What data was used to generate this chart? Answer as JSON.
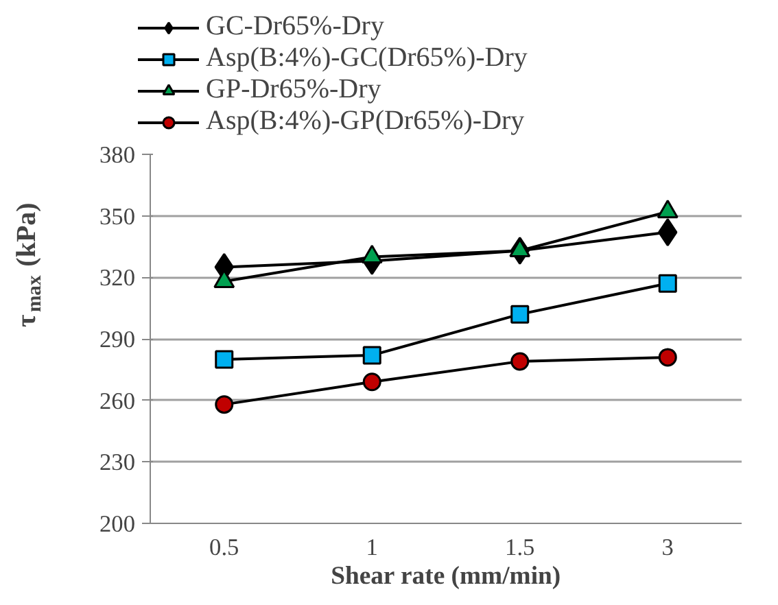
{
  "chart_data": {
    "type": "line",
    "xlabel": "Shear rate (mm/min)",
    "ylabel": "τ$_{max}$ (kPa)",
    "categories": [
      "0.5",
      "1",
      "1.5",
      "3"
    ],
    "ylim": [
      200,
      380
    ],
    "yticks": [
      200,
      230,
      260,
      290,
      320,
      350,
      380
    ],
    "grid": "y",
    "legend": "top",
    "series": [
      {
        "name": "GC-Dr65%-Dry",
        "color": "#000000",
        "marker": "diamond",
        "values": [
          325,
          328,
          333,
          342
        ]
      },
      {
        "name": "Asp(B:4%)-GC(Dr65%)-Dry",
        "color": "#00b0f0",
        "marker": "square",
        "values": [
          280,
          282,
          302,
          317
        ]
      },
      {
        "name": "GP-Dr65%-Dry",
        "color": "#00a050",
        "marker": "triangle",
        "values": [
          318,
          330,
          333,
          352
        ]
      },
      {
        "name": "Asp(B:4%)-GP(Dr65%)-Dry",
        "color": "#c00000",
        "marker": "circle",
        "values": [
          258,
          269,
          279,
          281
        ]
      }
    ]
  }
}
